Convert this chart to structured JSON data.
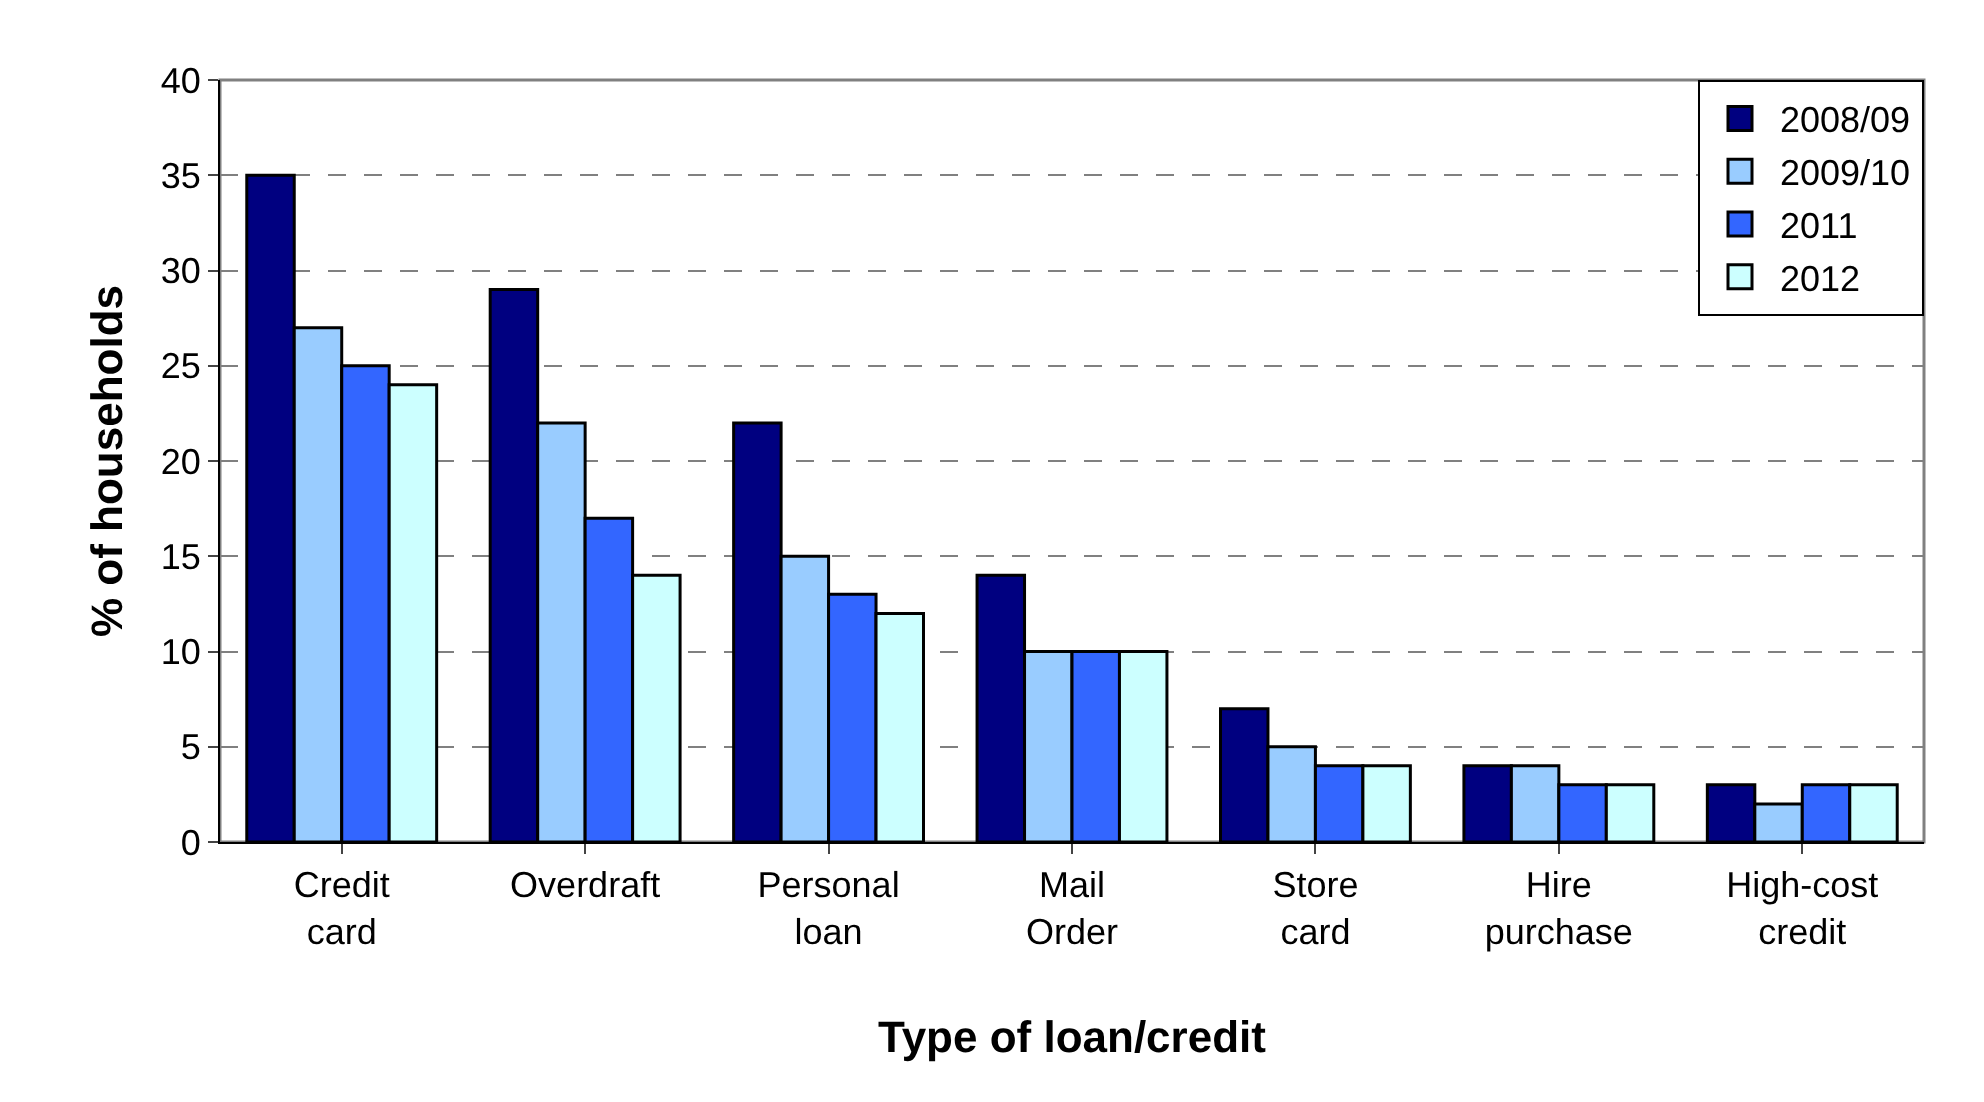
{
  "chart_data": {
    "type": "bar",
    "xlabel": "Type of loan/credit",
    "ylabel": "% of households",
    "categories": [
      "Credit card",
      "Overdraft",
      "Personal loan",
      "Mail Order",
      "Store card",
      "Hire purchase",
      "High-cost credit"
    ],
    "series": [
      {
        "name": "2008/09",
        "color": "#000080",
        "values": [
          35,
          29,
          22,
          14,
          7,
          4,
          3
        ]
      },
      {
        "name": "2009/10",
        "color": "#99ccff",
        "values": [
          27,
          22,
          15,
          10,
          5,
          4,
          2
        ]
      },
      {
        "name": "2011",
        "color": "#3366ff",
        "values": [
          25,
          17,
          13,
          10,
          4,
          3,
          3
        ]
      },
      {
        "name": "2012",
        "color": "#ccffff",
        "values": [
          24,
          14,
          12,
          10,
          4,
          3,
          3
        ]
      }
    ],
    "ylim": [
      0,
      40
    ],
    "yticks": [
      0,
      5,
      10,
      15,
      20,
      25,
      30,
      35,
      40
    ],
    "grid": "y",
    "legend": "top right"
  }
}
